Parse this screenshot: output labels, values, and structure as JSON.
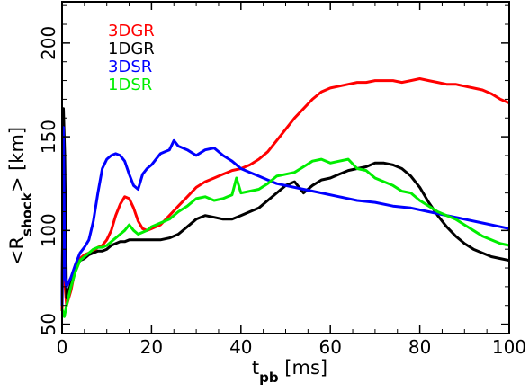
{
  "chart_data": {
    "type": "line",
    "xlabel": {
      "main": "t",
      "sub": "pb",
      "rest": " [ms]"
    },
    "ylabel": {
      "pre": "<R",
      "sub": "shock",
      "post": "> [km]"
    },
    "xlim": [
      0,
      100
    ],
    "ylim": [
      45,
      222
    ],
    "xticks": [
      0,
      20,
      40,
      60,
      80,
      100
    ],
    "yticks": [
      50,
      100,
      150,
      200
    ],
    "grid": false,
    "legend_placement": "top-left",
    "series": [
      {
        "name": "3DGR",
        "color": "#ff0000",
        "x": [
          0,
          0.3,
          0.6,
          1,
          2,
          3,
          4,
          5,
          6,
          7,
          8,
          9,
          10,
          11,
          12,
          13,
          14,
          15,
          16,
          17,
          18,
          19,
          20,
          22,
          24,
          26,
          28,
          30,
          32,
          34,
          36,
          38,
          40,
          42,
          44,
          46,
          48,
          50,
          52,
          54,
          56,
          58,
          60,
          62,
          64,
          66,
          68,
          70,
          72,
          74,
          76,
          78,
          80,
          82,
          84,
          86,
          88,
          90,
          92,
          94,
          96,
          98,
          100
        ],
        "y": [
          57,
          150,
          72,
          60,
          68,
          80,
          85,
          87,
          88,
          89,
          91,
          92,
          95,
          100,
          108,
          114,
          118,
          117,
          112,
          105,
          101,
          100,
          101,
          103,
          108,
          113,
          118,
          123,
          126,
          128,
          130,
          132,
          133,
          135,
          138,
          142,
          148,
          154,
          160,
          165,
          170,
          174,
          176,
          177,
          178,
          179,
          179,
          180,
          180,
          180,
          179,
          180,
          181,
          180,
          179,
          178,
          178,
          177,
          176,
          175,
          173,
          170,
          168
        ]
      },
      {
        "name": "1DGR",
        "color": "#000000",
        "x": [
          0,
          0.3,
          0.6,
          1,
          2,
          3,
          4,
          5,
          6,
          7,
          8,
          9,
          10,
          11,
          12,
          13,
          14,
          15,
          16,
          18,
          20,
          22,
          24,
          26,
          28,
          30,
          32,
          34,
          36,
          38,
          40,
          42,
          44,
          46,
          48,
          50,
          52,
          54,
          56,
          58,
          60,
          62,
          64,
          66,
          68,
          70,
          72,
          74,
          76,
          78,
          80,
          82,
          84,
          86,
          88,
          90,
          92,
          94,
          96,
          98,
          100
        ],
        "y": [
          60,
          165,
          140,
          64,
          72,
          80,
          84,
          85,
          87,
          88,
          89,
          89,
          90,
          92,
          93,
          94,
          94,
          95,
          95,
          95,
          95,
          95,
          96,
          98,
          102,
          106,
          108,
          107,
          106,
          106,
          108,
          110,
          112,
          116,
          120,
          124,
          126,
          120,
          124,
          127,
          128,
          130,
          132,
          133,
          134,
          136,
          136,
          135,
          133,
          129,
          123,
          115,
          108,
          102,
          97,
          93,
          90,
          88,
          86,
          85,
          84
        ]
      },
      {
        "name": "3DSR",
        "color": "#0000ff",
        "x": [
          0,
          0.3,
          0.6,
          1,
          2,
          3,
          4,
          5,
          6,
          7,
          8,
          9,
          10,
          11,
          12,
          13,
          14,
          15,
          16,
          17,
          18,
          19,
          20,
          21,
          22,
          23,
          24,
          25,
          26,
          28,
          30,
          32,
          34,
          36,
          38,
          40,
          42,
          44,
          46,
          48,
          50,
          54,
          58,
          62,
          66,
          70,
          74,
          78,
          82,
          86,
          90,
          94,
          98,
          100
        ],
        "y": [
          60,
          155,
          75,
          70,
          75,
          82,
          88,
          91,
          95,
          105,
          120,
          133,
          138,
          140,
          141,
          140,
          137,
          130,
          124,
          122,
          130,
          133,
          135,
          138,
          141,
          142,
          143,
          148,
          145,
          143,
          140,
          143,
          144,
          140,
          137,
          133,
          131,
          129,
          127,
          125,
          124,
          122,
          120,
          118,
          116,
          115,
          113,
          112,
          110,
          108,
          106,
          104,
          102,
          101
        ]
      },
      {
        "name": "1DSR",
        "color": "#00ee00",
        "x": [
          0,
          0.5,
          1,
          2,
          3,
          4,
          5,
          6,
          7,
          8,
          9,
          10,
          11,
          12,
          13,
          14,
          15,
          16,
          17,
          18,
          19,
          20,
          22,
          24,
          26,
          28,
          30,
          32,
          34,
          36,
          38,
          39,
          40,
          42,
          44,
          46,
          48,
          50,
          52,
          54,
          56,
          58,
          60,
          62,
          64,
          66,
          68,
          70,
          72,
          74,
          76,
          78,
          80,
          82,
          84,
          86,
          88,
          90,
          92,
          94,
          96,
          98,
          100
        ],
        "y": [
          58,
          54,
          60,
          70,
          78,
          84,
          86,
          88,
          90,
          91,
          91,
          92,
          94,
          96,
          98,
          100,
          103,
          100,
          98,
          99,
          100,
          102,
          104,
          106,
          110,
          113,
          117,
          118,
          116,
          117,
          119,
          128,
          120,
          121,
          122,
          125,
          129,
          130,
          131,
          134,
          137,
          138,
          136,
          137,
          138,
          133,
          132,
          128,
          126,
          124,
          121,
          120,
          116,
          113,
          110,
          108,
          106,
          103,
          100,
          97,
          95,
          93,
          92
        ]
      }
    ]
  }
}
